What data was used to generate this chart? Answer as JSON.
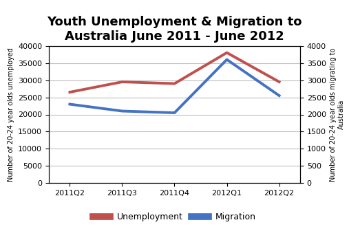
{
  "title": "Youth Unemployment & Migration to\nAustralia June 2011 - June 2012",
  "categories": [
    "2011Q2",
    "2011Q3",
    "2011Q4",
    "2012Q1",
    "2012Q2"
  ],
  "unemployment": [
    26500,
    29500,
    29000,
    38000,
    29500
  ],
  "migration": [
    2300,
    2100,
    2050,
    3600,
    2550
  ],
  "unemployment_color": "#C0504D",
  "migration_color": "#4472C4",
  "left_ylabel": "Number of 20-24 year olds unemployed",
  "right_ylabel": "Number of 20-24 year olds migrating to\nAustralia",
  "left_ylim": [
    0,
    40000
  ],
  "right_ylim": [
    0,
    4000
  ],
  "left_yticks": [
    0,
    5000,
    10000,
    15000,
    20000,
    25000,
    30000,
    35000,
    40000
  ],
  "right_yticks": [
    0,
    500,
    1000,
    1500,
    2000,
    2500,
    3000,
    3500,
    4000
  ],
  "legend_labels": [
    "Unemployment",
    "Migration"
  ],
  "title_fontsize": 13,
  "label_fontsize": 7,
  "tick_fontsize": 8,
  "legend_fontsize": 9,
  "line_width": 2.8,
  "background_color": "#FFFFFF",
  "grid_color": "#BFBFBF"
}
